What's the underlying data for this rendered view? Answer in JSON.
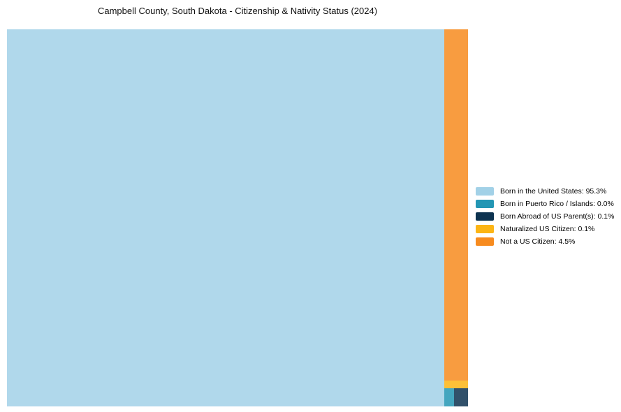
{
  "title": "Campbell County, South Dakota - Citizenship & Nativity Status (2024)",
  "background_color": "#ffffff",
  "chart_data": {
    "type": "treemap",
    "title": "Campbell County, South Dakota - Citizenship & Nativity Status (2024)",
    "unit": "percent",
    "legend_position": "right",
    "total_pct": 100,
    "series": [
      {
        "label": "Born in the United States",
        "value_pct": 95.3,
        "legend_label": "Born in the United States: 95.3%",
        "color": "#a2d1e7"
      },
      {
        "label": "Born in Puerto Rico / Islands",
        "value_pct": 0.0,
        "legend_label": "Born in Puerto Rico / Islands: 0.0%",
        "color": "#2396b4"
      },
      {
        "label": "Born Abroad of US Parent(s)",
        "value_pct": 0.1,
        "legend_label": "Born Abroad of US Parent(s): 0.1%",
        "color": "#0d3350"
      },
      {
        "label": "Naturalized US Citizen",
        "value_pct": 0.1,
        "legend_label": "Naturalized US Citizen: 0.1%",
        "color": "#fcb515"
      },
      {
        "label": "Not a US Citizen",
        "value_pct": 4.5,
        "legend_label": "Not a US Citizen: 4.5%",
        "color": "#f78b1f"
      }
    ]
  }
}
